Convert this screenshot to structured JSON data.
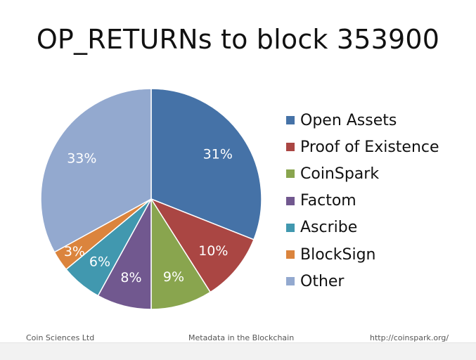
{
  "title": "OP_RETURNs to block 353900",
  "colors": {
    "background": "#ffffff",
    "label_text": "#ffffff",
    "slice_border": "#ffffff"
  },
  "chart_data": {
    "type": "pie",
    "title": "OP_RETURNs to block 353900",
    "start_angle": "12 o'clock",
    "direction": "clockwise",
    "legend_position": "right",
    "slices": [
      {
        "label": "Open Assets",
        "value": 31,
        "display": "31%",
        "color": "#4572a7"
      },
      {
        "label": "Proof of Existence",
        "value": 10,
        "display": "10%",
        "color": "#aa4643"
      },
      {
        "label": "CoinSpark",
        "value": 9,
        "display": "9%",
        "color": "#89a54e"
      },
      {
        "label": "Factom",
        "value": 8,
        "display": "8%",
        "color": "#71588f"
      },
      {
        "label": "Ascribe",
        "value": 6,
        "display": "6%",
        "color": "#4198af"
      },
      {
        "label": "BlockSign",
        "value": 3,
        "display": "3%",
        "color": "#db843d"
      },
      {
        "label": "Other",
        "value": 33,
        "display": "33%",
        "color": "#93a9cf"
      }
    ]
  },
  "footer": {
    "left": "Coin Sciences Ltd",
    "center": "Metadata in the Blockchain",
    "right": "http://coinspark.org/"
  }
}
